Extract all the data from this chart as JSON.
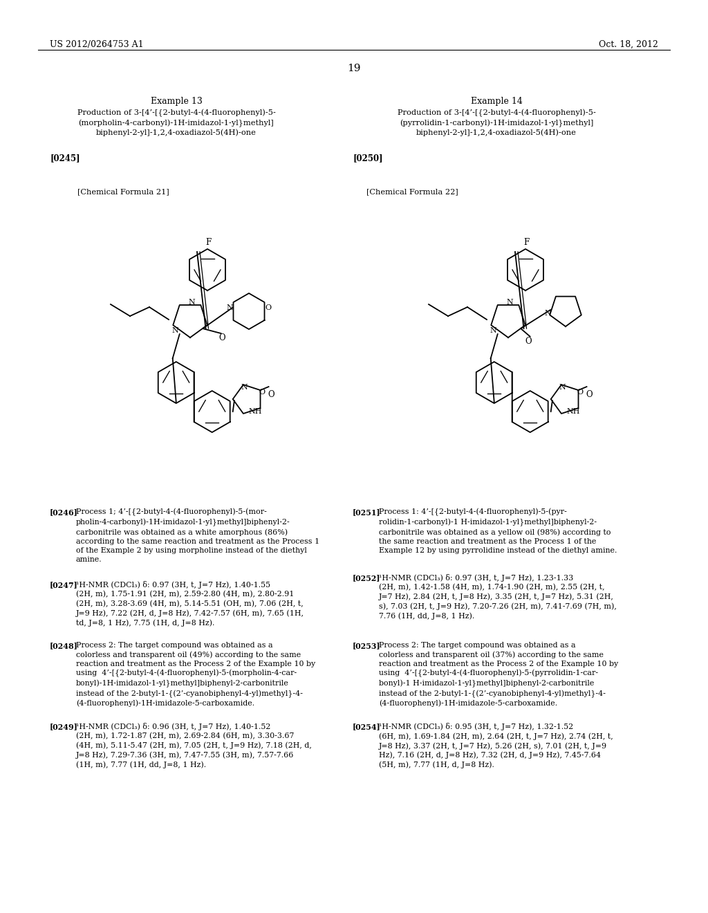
{
  "bg_color": "#ffffff",
  "header_left": "US 2012/0264753 A1",
  "header_right": "Oct. 18, 2012",
  "page_number": "19",
  "example13_title": "Example 13",
  "example13_subtitle": "Production of 3-[4’-[{2-butyl-4-(4-fluorophenyl)-5-\n(morpholin-4-carbonyl)-1H-imidazol-1-yl}methyl]\nbiphenyl-2-yl]-1,2,4-oxadiazol-5(4H)-one",
  "example14_title": "Example 14",
  "example14_subtitle": "Production of 3-[4’-[{2-butyl-4-(4-fluorophenyl)-5-\n(pyrrolidin-1-carbonyl)-1H-imidazol-1-yl}methyl]\nbiphenyl-2-yl]-1,2,4-oxadiazol-5(4H)-one",
  "label13": "[0245]",
  "label14": "[0250]",
  "chem_label13": "[Chemical Formula 21]",
  "chem_label14": "[Chemical Formula 22]",
  "para0246_bold": "[0246]",
  "para0247_bold": "[0247]",
  "para0248_bold": "[0248]",
  "para0249_bold": "[0249]",
  "para0251_bold": "[0251]",
  "para0252_bold": "[0252]",
  "para0253_bold": "[0253]",
  "para0254_bold": "[0254]"
}
